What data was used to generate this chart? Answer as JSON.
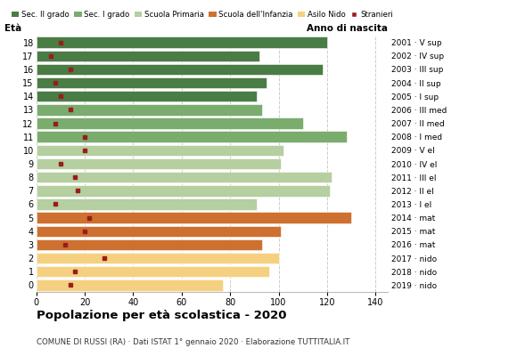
{
  "ages": [
    18,
    17,
    16,
    15,
    14,
    13,
    12,
    11,
    10,
    9,
    8,
    7,
    6,
    5,
    4,
    3,
    2,
    1,
    0
  ],
  "bar_values": [
    120,
    92,
    118,
    95,
    91,
    93,
    110,
    128,
    102,
    101,
    122,
    121,
    91,
    130,
    101,
    93,
    100,
    96,
    77
  ],
  "stranieri": [
    10,
    6,
    14,
    8,
    10,
    14,
    8,
    20,
    20,
    10,
    16,
    17,
    8,
    22,
    20,
    12,
    28,
    16,
    14
  ],
  "bar_colors": [
    "#4a7c45",
    "#4a7c45",
    "#4a7c45",
    "#4a7c45",
    "#4a7c45",
    "#7aac6e",
    "#7aac6e",
    "#7aac6e",
    "#b5cfa0",
    "#b5cfa0",
    "#b5cfa0",
    "#b5cfa0",
    "#b5cfa0",
    "#cd7030",
    "#cd7030",
    "#cd7030",
    "#f5d080",
    "#f5d080",
    "#f5d080"
  ],
  "anno_labels": [
    "2001 · V sup",
    "2002 · IV sup",
    "2003 · III sup",
    "2004 · II sup",
    "2005 · I sup",
    "2006 · III med",
    "2007 · II med",
    "2008 · I med",
    "2009 · V el",
    "2010 · IV el",
    "2011 · III el",
    "2012 · II el",
    "2013 · I el",
    "2014 · mat",
    "2015 · mat",
    "2016 · mat",
    "2017 · nido",
    "2018 · nido",
    "2019 · nido"
  ],
  "legend_labels": [
    "Sec. II grado",
    "Sec. I grado",
    "Scuola Primaria",
    "Scuola dell'Infanzia",
    "Asilo Nido",
    "Stranieri"
  ],
  "legend_colors": [
    "#4a7c45",
    "#7aac6e",
    "#b5cfa0",
    "#cd7030",
    "#f5d080",
    "#9b1c1c"
  ],
  "title": "Popolazione per età scolastica - 2020",
  "subtitle": "COMUNE DI RUSSI (RA) · Dati ISTAT 1° gennaio 2020 · Elaborazione TUTTITALIA.IT",
  "xlabel_eta": "Età",
  "xlabel_anno": "Anno di nascita",
  "stranieri_color": "#9b1c1c",
  "background_color": "#ffffff",
  "bar_height": 0.82
}
